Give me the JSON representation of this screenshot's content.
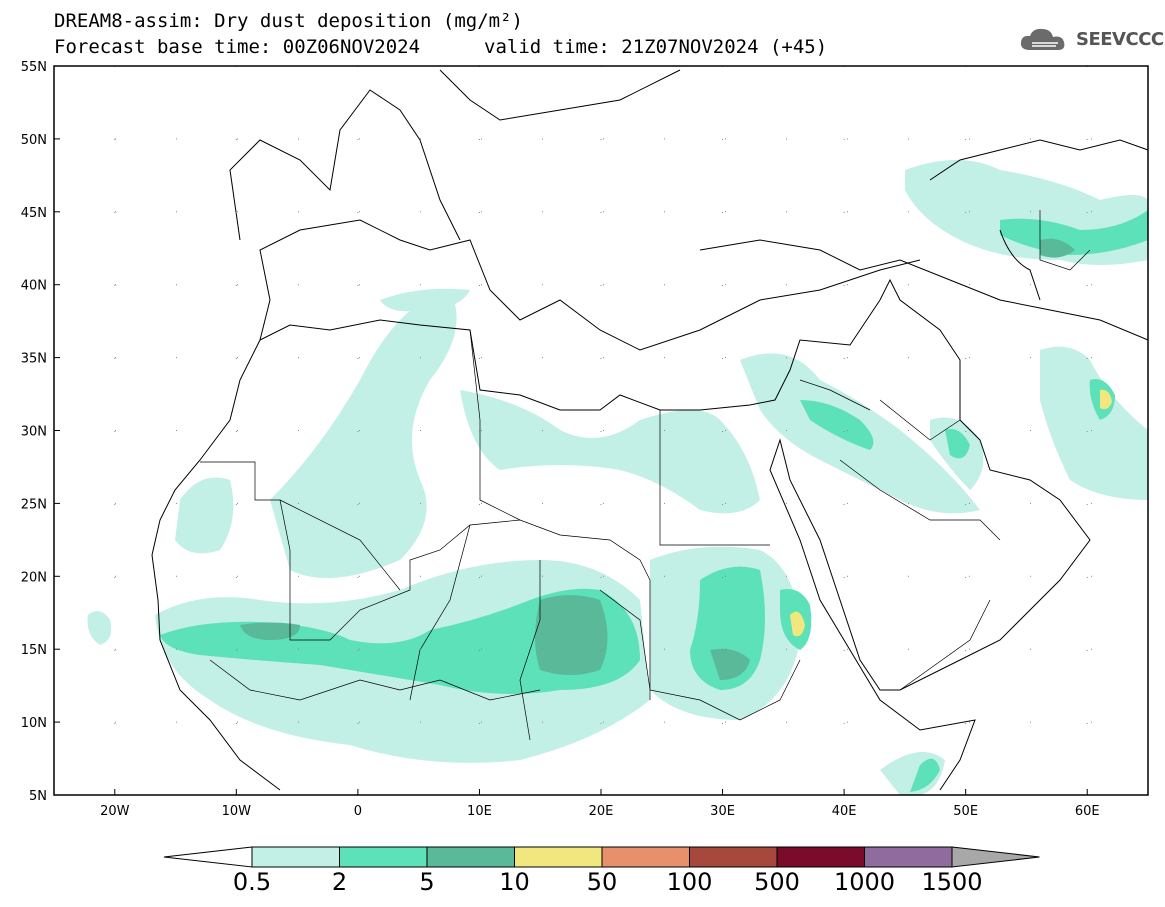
{
  "header": {
    "title": "DREAM8-assim: Dry dust deposition (mg/m²)",
    "base_time": "Forecast base time: 00Z06NOV2024",
    "valid_time": "valid time: 21Z07NOV2024 (+45)"
  },
  "logo": {
    "text": "SEEVCCC",
    "icon": "cloud-icon"
  },
  "map": {
    "lat_range": [
      5,
      55
    ],
    "lon_range": [
      -25,
      65
    ],
    "lat_labels": [
      "5N",
      "10N",
      "15N",
      "20N",
      "25N",
      "30N",
      "35N",
      "40N",
      "45N",
      "50N",
      "55N"
    ],
    "lon_labels": [
      "20W",
      "10W",
      "0",
      "10E",
      "20E",
      "30E",
      "40E",
      "50E",
      "60E"
    ]
  },
  "legend": {
    "labels": [
      "0.5",
      "2",
      "5",
      "10",
      "50",
      "100",
      "500",
      "1000",
      "1500"
    ],
    "colors": [
      "#c2efe6",
      "#5de1b8",
      "#5ab999",
      "#f2e77f",
      "#e8906b",
      "#a6493c",
      "#7a0b2a",
      "#8f6b9e",
      "#a8a8a8"
    ]
  }
}
